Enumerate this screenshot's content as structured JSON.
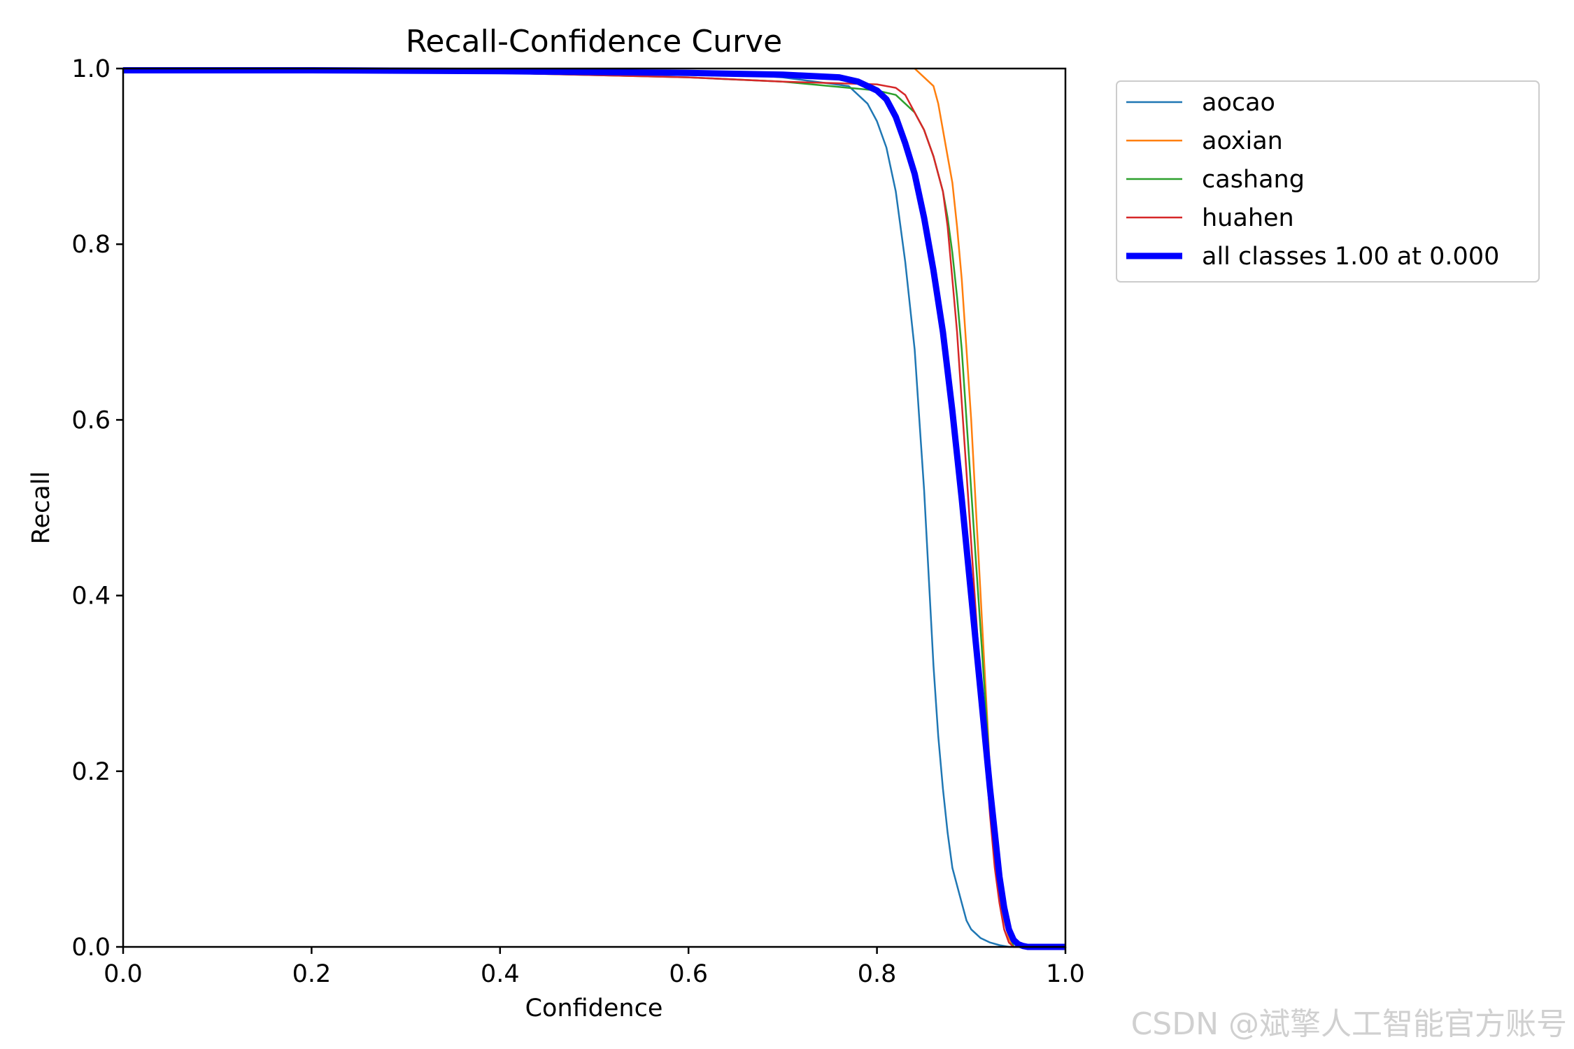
{
  "chart_data": {
    "type": "line",
    "title": "Recall-Confidence Curve",
    "xlabel": "Confidence",
    "ylabel": "Recall",
    "xlim": [
      0.0,
      1.0
    ],
    "ylim": [
      0.0,
      1.0
    ],
    "xticks": [
      "0.0",
      "0.2",
      "0.4",
      "0.6",
      "0.8",
      "1.0"
    ],
    "yticks": [
      "0.0",
      "0.2",
      "0.4",
      "0.6",
      "0.8",
      "1.0"
    ],
    "grid": false,
    "legend_position": "outside-top-right",
    "series": [
      {
        "name": "aocao",
        "color": "#1f77b4",
        "x": [
          0.0,
          0.2,
          0.4,
          0.6,
          0.7,
          0.77,
          0.79,
          0.8,
          0.81,
          0.82,
          0.83,
          0.84,
          0.845,
          0.85,
          0.855,
          0.86,
          0.865,
          0.87,
          0.875,
          0.88,
          0.885,
          0.89,
          0.895,
          0.9,
          0.91,
          0.92,
          0.93,
          0.94,
          0.95,
          1.0
        ],
        "y": [
          1.0,
          1.0,
          0.998,
          0.997,
          0.99,
          0.98,
          0.96,
          0.94,
          0.91,
          0.86,
          0.78,
          0.68,
          0.6,
          0.52,
          0.42,
          0.32,
          0.24,
          0.18,
          0.13,
          0.09,
          0.07,
          0.05,
          0.03,
          0.02,
          0.01,
          0.005,
          0.002,
          0.0,
          0.0,
          0.0
        ]
      },
      {
        "name": "aoxian",
        "color": "#ff7f0e",
        "x": [
          0.84,
          0.85,
          0.86,
          0.865,
          0.87,
          0.875,
          0.88,
          0.885,
          0.89,
          0.895,
          0.9,
          0.905,
          0.91,
          0.915,
          0.92,
          0.925,
          0.93,
          0.935,
          0.94,
          0.945,
          1.0
        ],
        "y": [
          1.0,
          0.99,
          0.98,
          0.96,
          0.93,
          0.9,
          0.87,
          0.82,
          0.76,
          0.68,
          0.6,
          0.5,
          0.4,
          0.3,
          0.2,
          0.12,
          0.07,
          0.03,
          0.01,
          0.0,
          0.0
        ]
      },
      {
        "name": "cashang",
        "color": "#2ca02c",
        "x": [
          0.0,
          0.2,
          0.4,
          0.6,
          0.7,
          0.8,
          0.82,
          0.83,
          0.84,
          0.85,
          0.86,
          0.87,
          0.875,
          0.88,
          0.885,
          0.89,
          0.895,
          0.9,
          0.905,
          0.91,
          0.915,
          0.92,
          0.925,
          0.93,
          0.935,
          0.94,
          0.945,
          1.0
        ],
        "y": [
          0.997,
          0.996,
          0.995,
          0.99,
          0.985,
          0.975,
          0.97,
          0.96,
          0.95,
          0.93,
          0.9,
          0.86,
          0.83,
          0.79,
          0.74,
          0.68,
          0.6,
          0.52,
          0.44,
          0.36,
          0.28,
          0.2,
          0.14,
          0.09,
          0.05,
          0.02,
          0.0,
          0.0
        ]
      },
      {
        "name": "huahen",
        "color": "#d62728",
        "x": [
          0.0,
          0.2,
          0.4,
          0.6,
          0.7,
          0.8,
          0.82,
          0.83,
          0.84,
          0.85,
          0.86,
          0.87,
          0.875,
          0.88,
          0.885,
          0.89,
          0.895,
          0.9,
          0.905,
          0.91,
          0.915,
          0.92,
          0.925,
          0.93,
          0.935,
          0.94,
          0.945,
          1.0
        ],
        "y": [
          0.997,
          0.996,
          0.995,
          0.99,
          0.985,
          0.982,
          0.978,
          0.97,
          0.95,
          0.93,
          0.9,
          0.86,
          0.82,
          0.76,
          0.7,
          0.62,
          0.54,
          0.46,
          0.38,
          0.3,
          0.22,
          0.15,
          0.09,
          0.05,
          0.02,
          0.005,
          0.0,
          0.0
        ]
      },
      {
        "name": "all classes 1.00 at 0.000",
        "color": "#0000ff",
        "bold": true,
        "x": [
          0.0,
          0.2,
          0.4,
          0.6,
          0.7,
          0.76,
          0.78,
          0.8,
          0.81,
          0.82,
          0.83,
          0.84,
          0.85,
          0.86,
          0.87,
          0.88,
          0.89,
          0.9,
          0.91,
          0.92,
          0.925,
          0.93,
          0.935,
          0.94,
          0.945,
          0.95,
          0.955,
          0.96,
          1.0
        ],
        "y": [
          0.998,
          0.998,
          0.997,
          0.995,
          0.993,
          0.99,
          0.985,
          0.975,
          0.965,
          0.945,
          0.915,
          0.88,
          0.83,
          0.77,
          0.7,
          0.61,
          0.51,
          0.4,
          0.29,
          0.18,
          0.13,
          0.08,
          0.045,
          0.02,
          0.008,
          0.003,
          0.001,
          0.0,
          0.0
        ]
      }
    ]
  },
  "watermark": "CSDN @斌擎人工智能官方账号"
}
